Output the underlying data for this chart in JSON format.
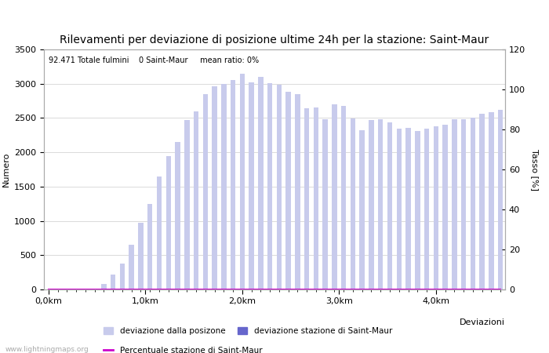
{
  "title": "Rilevamenti per deviazione di posizione ultime 24h per la stazione: Saint-Maur",
  "subtitle": "92.471 Totale fulmini    0 Saint-Maur     mean ratio: 0%",
  "xlabel": "Deviazioni",
  "ylabel_left": "Numero",
  "ylabel_right": "Tasso [%]",
  "watermark": "www.lightningmaps.org",
  "bar_values": [
    5,
    5,
    5,
    10,
    5,
    5,
    75,
    220,
    380,
    650,
    970,
    1250,
    1650,
    1950,
    2150,
    2470,
    2600,
    2850,
    2960,
    3000,
    3050,
    3150,
    3020,
    3100,
    3010,
    2980,
    2880,
    2850,
    2640,
    2650,
    2480,
    2700,
    2680,
    2490,
    2320,
    2470,
    2480,
    2440,
    2350,
    2360,
    2310,
    2350,
    2380,
    2400,
    2480,
    2480,
    2510,
    2560,
    2590,
    2620
  ],
  "station_bar_values": [
    0,
    0,
    0,
    0,
    0,
    0,
    0,
    0,
    0,
    0,
    0,
    0,
    0,
    0,
    0,
    0,
    0,
    0,
    0,
    0,
    0,
    0,
    0,
    0,
    0,
    0,
    0,
    0,
    0,
    0,
    0,
    0,
    0,
    0,
    0,
    0,
    0,
    0,
    0,
    0,
    0,
    0,
    0,
    0,
    0,
    0,
    0,
    0,
    0,
    0
  ],
  "x_tick_labels": [
    "0,0km",
    "1,0km",
    "2,0km",
    "3,0km",
    "4,0km"
  ],
  "ylim_left": [
    0,
    3500
  ],
  "ylim_right": [
    0,
    120
  ],
  "yticks_left": [
    0,
    500,
    1000,
    1500,
    2000,
    2500,
    3000,
    3500
  ],
  "yticks_right": [
    0,
    20,
    40,
    60,
    80,
    100,
    120
  ],
  "bar_color_light": "#c8cbec",
  "bar_color_dark": "#6666cc",
  "line_color": "#cc00cc",
  "grid_color": "#cccccc",
  "background_color": "#ffffff",
  "title_fontsize": 10,
  "axis_fontsize": 8,
  "tick_fontsize": 8
}
